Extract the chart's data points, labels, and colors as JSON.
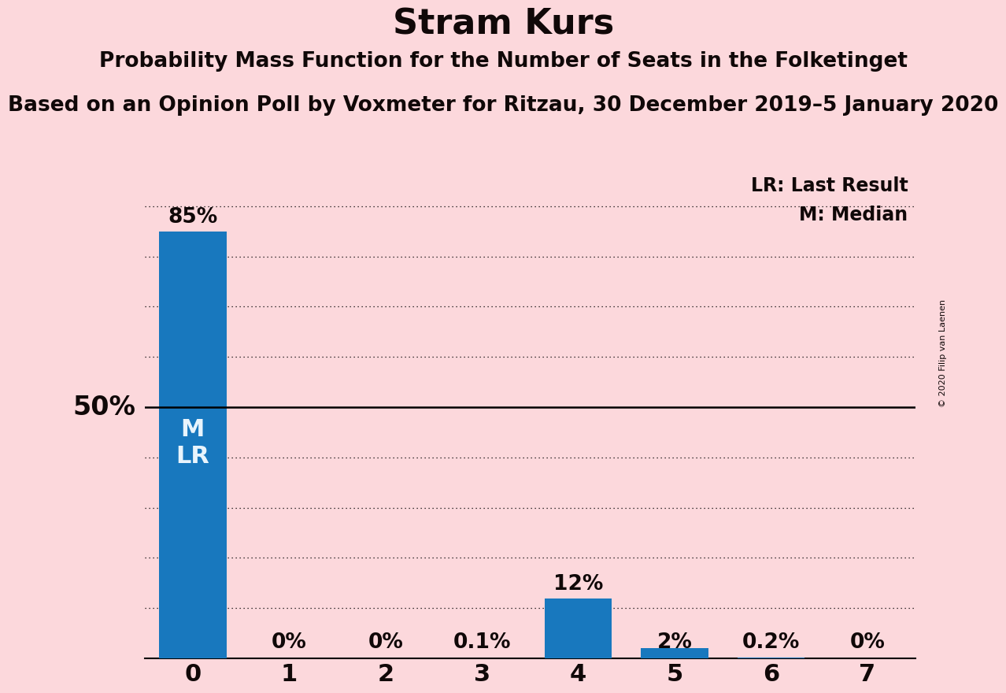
{
  "title": "Stram Kurs",
  "subtitle1": "Probability Mass Function for the Number of Seats in the Folketinget",
  "subtitle2": "Based on an Opinion Poll by Voxmeter for Ritzau, 30 December 2019–5 January 2020",
  "categories": [
    0,
    1,
    2,
    3,
    4,
    5,
    6,
    7
  ],
  "values": [
    0.85,
    0.0,
    0.0,
    0.001,
    0.12,
    0.02,
    0.002,
    0.0
  ],
  "value_labels": [
    "85%",
    "0%",
    "0%",
    "0.1%",
    "12%",
    "2%",
    "0.2%",
    "0%"
  ],
  "bar_color": "#1878be",
  "background_color": "#fcd8dc",
  "bar_text_color": "#e8f4fc",
  "ylabel_text": "50%",
  "ylabel_value": 0.5,
  "solid_line_y": 0.5,
  "dotted_lines_y": [
    0.1,
    0.2,
    0.3,
    0.4,
    0.6,
    0.7,
    0.8,
    0.9
  ],
  "ylim": [
    0,
    0.97
  ],
  "xlim": [
    -0.5,
    7.5
  ],
  "legend_lr": "LR: Last Result",
  "legend_m": "M: Median",
  "copyright": "© 2020 Filip van Laenen",
  "label_inside_bar": "M\nLR",
  "title_fontsize": 32,
  "subtitle1_fontsize": 19,
  "subtitle2_fontsize": 19,
  "bar_label_fontsize": 19,
  "tick_fontsize": 22,
  "ylabel_fontsize": 24,
  "legend_fontsize": 17,
  "inside_bar_fontsize": 22,
  "copyright_fontsize": 8
}
